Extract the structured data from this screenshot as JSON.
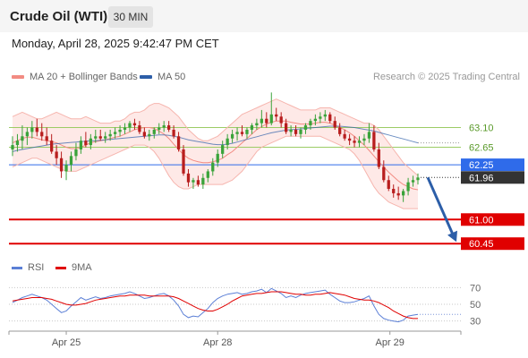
{
  "header": {
    "title": "Crude Oil (WTI)",
    "timeframe": "30 MIN"
  },
  "timestamp": "Monday, April 28, 2025 9:42:47 PM CET",
  "legend": {
    "bollinger": {
      "label": "MA 20 + Bollinger Bands",
      "color": "#f28b82"
    },
    "ma50": {
      "label": "MA 50",
      "color": "#2c5ea8"
    }
  },
  "credit": "Research © 2025 Trading Central",
  "rsi_legend": {
    "rsi": {
      "label": "RSI",
      "color": "#5b7fd6"
    },
    "ma9": {
      "label": "9MA",
      "color": "#e00000"
    }
  },
  "colors": {
    "up": "#3aa33a",
    "down": "#b81e1e",
    "resistance": "#9ccc65",
    "support": "#e00000",
    "pivot": "#2f6bea",
    "arrow": "#2c5ea8"
  },
  "chart_data": {
    "type": "candlestick",
    "price_axis": {
      "min": 60.25,
      "max": 64.05
    },
    "x_ticks": [
      "Apr 25",
      "Apr 28",
      "Apr 29"
    ],
    "levels": [
      {
        "label": "63.10",
        "value": 63.1,
        "kind": "resistance"
      },
      {
        "label": "62.65",
        "value": 62.65,
        "kind": "resistance"
      },
      {
        "label": "62.25",
        "value": 62.25,
        "kind": "pivot"
      },
      {
        "label": "61.00",
        "value": 61.0,
        "kind": "support"
      },
      {
        "label": "60.45",
        "value": 60.45,
        "kind": "support"
      }
    ],
    "last_price": {
      "label": "61.96",
      "value": 61.96
    },
    "ohlc": [
      [
        62.6,
        62.9,
        62.45,
        62.7
      ],
      [
        62.7,
        62.95,
        62.55,
        62.8
      ],
      [
        62.8,
        63.15,
        62.6,
        62.9
      ],
      [
        62.9,
        63.1,
        62.7,
        63.0
      ],
      [
        63.0,
        63.25,
        62.85,
        63.1
      ],
      [
        63.1,
        63.3,
        62.9,
        63.0
      ],
      [
        63.0,
        63.2,
        62.8,
        62.9
      ],
      [
        62.9,
        63.1,
        62.7,
        62.8
      ],
      [
        62.8,
        62.95,
        62.5,
        62.55
      ],
      [
        62.55,
        62.7,
        62.25,
        62.4
      ],
      [
        62.4,
        62.55,
        61.95,
        62.1
      ],
      [
        62.1,
        62.35,
        61.9,
        62.25
      ],
      [
        62.25,
        62.55,
        62.1,
        62.45
      ],
      [
        62.45,
        62.75,
        62.35,
        62.6
      ],
      [
        62.6,
        62.9,
        62.5,
        62.8
      ],
      [
        62.8,
        63.0,
        62.65,
        62.7
      ],
      [
        62.7,
        62.95,
        62.6,
        62.85
      ],
      [
        62.85,
        63.05,
        62.75,
        62.9
      ],
      [
        62.9,
        63.05,
        62.8,
        62.85
      ],
      [
        62.85,
        63.0,
        62.75,
        62.9
      ],
      [
        62.9,
        63.05,
        62.8,
        62.95
      ],
      [
        62.95,
        63.1,
        62.85,
        63.0
      ],
      [
        63.0,
        63.15,
        62.9,
        63.05
      ],
      [
        63.05,
        63.2,
        62.95,
        63.1
      ],
      [
        63.1,
        63.25,
        63.0,
        63.2
      ],
      [
        63.2,
        63.3,
        63.05,
        63.15
      ],
      [
        63.15,
        63.25,
        62.95,
        63.0
      ],
      [
        63.0,
        63.1,
        62.85,
        62.9
      ],
      [
        62.9,
        63.05,
        62.8,
        62.95
      ],
      [
        62.95,
        63.1,
        62.85,
        63.05
      ],
      [
        63.05,
        63.2,
        62.95,
        63.1
      ],
      [
        63.1,
        63.25,
        63.0,
        63.15
      ],
      [
        63.15,
        63.25,
        63.0,
        63.05
      ],
      [
        63.05,
        63.15,
        62.85,
        62.9
      ],
      [
        62.9,
        63.0,
        62.55,
        62.6
      ],
      [
        62.6,
        62.7,
        62.0,
        62.05
      ],
      [
        62.05,
        62.15,
        61.75,
        61.85
      ],
      [
        61.85,
        61.95,
        61.7,
        61.9
      ],
      [
        61.9,
        62.0,
        61.75,
        61.8
      ],
      [
        61.8,
        62.05,
        61.7,
        61.95
      ],
      [
        61.95,
        62.15,
        61.85,
        62.1
      ],
      [
        62.1,
        62.4,
        62.0,
        62.3
      ],
      [
        62.3,
        62.6,
        62.2,
        62.5
      ],
      [
        62.5,
        62.8,
        62.4,
        62.7
      ],
      [
        62.7,
        62.95,
        62.6,
        62.85
      ],
      [
        62.85,
        63.05,
        62.75,
        62.95
      ],
      [
        62.95,
        63.1,
        62.8,
        63.0
      ],
      [
        63.0,
        63.15,
        62.9,
        62.95
      ],
      [
        62.95,
        63.1,
        62.85,
        63.05
      ],
      [
        63.05,
        63.2,
        62.95,
        63.15
      ],
      [
        63.15,
        63.3,
        63.05,
        63.2
      ],
      [
        63.2,
        63.5,
        63.1,
        63.3
      ],
      [
        63.3,
        63.45,
        63.1,
        63.2
      ],
      [
        63.2,
        63.9,
        63.15,
        63.4
      ],
      [
        63.4,
        63.55,
        63.25,
        63.35
      ],
      [
        63.35,
        63.45,
        63.1,
        63.2
      ],
      [
        63.2,
        63.3,
        62.95,
        63.0
      ],
      [
        63.0,
        63.15,
        62.9,
        63.05
      ],
      [
        63.05,
        63.15,
        62.9,
        62.95
      ],
      [
        62.95,
        63.1,
        62.85,
        63.05
      ],
      [
        63.05,
        63.2,
        62.95,
        63.15
      ],
      [
        63.15,
        63.3,
        63.05,
        63.25
      ],
      [
        63.25,
        63.4,
        63.15,
        63.3
      ],
      [
        63.3,
        63.45,
        63.2,
        63.35
      ],
      [
        63.35,
        63.5,
        63.25,
        63.4
      ],
      [
        63.4,
        63.45,
        63.2,
        63.25
      ],
      [
        63.25,
        63.35,
        63.05,
        63.1
      ],
      [
        63.1,
        63.2,
        62.9,
        62.95
      ],
      [
        62.95,
        63.05,
        62.8,
        62.85
      ],
      [
        62.85,
        62.95,
        62.7,
        62.8
      ],
      [
        62.8,
        62.9,
        62.65,
        62.75
      ],
      [
        62.75,
        62.9,
        62.65,
        62.8
      ],
      [
        62.8,
        62.95,
        62.7,
        62.85
      ],
      [
        62.85,
        63.2,
        62.75,
        63.0
      ],
      [
        63.0,
        63.15,
        62.55,
        62.6
      ],
      [
        62.6,
        62.75,
        62.15,
        62.2
      ],
      [
        62.2,
        62.35,
        61.85,
        61.9
      ],
      [
        61.9,
        62.0,
        61.65,
        61.7
      ],
      [
        61.7,
        61.8,
        61.5,
        61.6
      ],
      [
        61.6,
        61.75,
        61.45,
        61.55
      ],
      [
        61.55,
        61.7,
        61.4,
        61.65
      ],
      [
        61.65,
        61.95,
        61.55,
        61.85
      ],
      [
        61.85,
        62.0,
        61.75,
        61.9
      ],
      [
        61.9,
        62.05,
        61.8,
        61.96
      ]
    ],
    "ma20_upper": [
      63.35,
      63.4,
      63.45,
      63.4,
      63.35,
      63.3,
      63.3,
      63.35,
      63.4,
      63.45,
      63.4,
      63.35,
      63.3,
      63.3,
      63.3,
      63.35,
      63.3,
      63.25,
      63.2,
      63.2,
      63.2,
      63.25,
      63.25,
      63.3,
      63.4,
      63.45,
      63.45,
      63.5,
      63.6,
      63.65,
      63.65,
      63.6,
      63.55,
      63.45,
      63.35,
      63.2,
      63.05,
      62.95,
      62.85,
      62.8,
      62.8,
      62.85,
      62.9,
      63.0,
      63.1,
      63.2,
      63.3,
      63.4,
      63.45,
      63.5,
      63.55,
      63.6,
      63.65,
      63.7,
      63.75,
      63.7,
      63.65,
      63.6,
      63.55,
      63.5,
      63.5,
      63.5,
      63.5,
      63.55,
      63.55,
      63.55,
      63.5,
      63.45,
      63.4,
      63.35,
      63.3,
      63.25,
      63.2,
      63.2,
      63.15,
      63.05,
      62.9,
      62.75,
      62.6,
      62.45,
      62.3,
      62.2,
      62.1,
      62.0
    ],
    "ma20_lower": [
      62.2,
      62.25,
      62.3,
      62.35,
      62.4,
      62.4,
      62.35,
      62.3,
      62.25,
      62.2,
      62.15,
      62.1,
      62.1,
      62.1,
      62.15,
      62.2,
      62.25,
      62.3,
      62.35,
      62.4,
      62.45,
      62.5,
      62.55,
      62.6,
      62.65,
      62.7,
      62.7,
      62.7,
      62.65,
      62.55,
      62.4,
      62.2,
      62.0,
      61.85,
      61.75,
      61.7,
      61.7,
      61.75,
      61.8,
      61.8,
      61.8,
      61.8,
      61.8,
      61.8,
      61.85,
      61.9,
      62.0,
      62.1,
      62.25,
      62.4,
      62.55,
      62.65,
      62.7,
      62.75,
      62.8,
      62.85,
      62.9,
      62.9,
      62.9,
      62.9,
      62.9,
      62.9,
      62.9,
      62.9,
      62.85,
      62.8,
      62.75,
      62.7,
      62.65,
      62.6,
      62.5,
      62.35,
      62.15,
      61.95,
      61.75,
      61.6,
      61.5,
      61.4,
      61.35,
      61.3,
      61.25,
      61.25,
      61.25,
      61.25
    ],
    "ma20": [
      62.75,
      62.8,
      62.85,
      62.88,
      62.88,
      62.85,
      62.82,
      62.8,
      62.78,
      62.75,
      62.7,
      62.65,
      62.62,
      62.62,
      62.65,
      62.7,
      62.75,
      62.78,
      62.8,
      62.82,
      62.85,
      62.88,
      62.9,
      62.95,
      63.0,
      63.05,
      63.08,
      63.1,
      63.1,
      63.08,
      63.02,
      62.95,
      62.85,
      62.72,
      62.6,
      62.48,
      62.4,
      62.35,
      62.32,
      62.3,
      62.3,
      62.32,
      62.35,
      62.4,
      62.48,
      62.55,
      62.65,
      62.75,
      62.85,
      62.95,
      63.05,
      63.12,
      63.18,
      63.22,
      63.25,
      63.25,
      63.25,
      63.22,
      63.2,
      63.18,
      63.18,
      63.18,
      63.2,
      63.22,
      63.22,
      63.2,
      63.15,
      63.1,
      63.05,
      62.98,
      62.9,
      62.8,
      62.7,
      62.58,
      62.45,
      62.32,
      62.2,
      62.08,
      61.98,
      61.88,
      61.8,
      61.75,
      61.7,
      61.68
    ],
    "ma50": [
      62.55,
      62.58,
      62.6,
      62.62,
      62.64,
      62.66,
      62.68,
      62.7,
      62.72,
      62.73,
      62.74,
      62.75,
      62.76,
      62.77,
      62.78,
      62.79,
      62.8,
      62.8,
      62.81,
      62.82,
      62.83,
      62.84,
      62.85,
      62.86,
      62.87,
      62.88,
      62.89,
      62.9,
      62.91,
      62.92,
      62.93,
      62.93,
      62.92,
      62.9,
      62.88,
      62.85,
      62.82,
      62.8,
      62.78,
      62.76,
      62.74,
      62.72,
      62.71,
      62.71,
      62.72,
      62.74,
      62.77,
      62.8,
      62.83,
      62.86,
      62.89,
      62.92,
      62.95,
      62.98,
      63.0,
      63.02,
      63.04,
      63.05,
      63.06,
      63.07,
      63.08,
      63.09,
      63.1,
      63.11,
      63.12,
      63.13,
      63.13,
      63.13,
      63.12,
      63.11,
      63.1,
      63.08,
      63.06,
      63.04,
      63.02,
      62.99,
      62.96,
      62.93,
      62.9,
      62.87,
      62.84,
      62.81,
      62.78,
      62.75
    ]
  },
  "rsi_data": {
    "axis": {
      "min": 20,
      "max": 80
    },
    "ticks": [
      70,
      50,
      30
    ],
    "rsi": [
      52,
      55,
      58,
      60,
      62,
      60,
      58,
      55,
      50,
      45,
      40,
      42,
      48,
      53,
      58,
      55,
      57,
      59,
      57,
      58,
      60,
      61,
      62,
      63,
      65,
      63,
      60,
      57,
      58,
      60,
      62,
      63,
      60,
      55,
      48,
      38,
      34,
      36,
      35,
      40,
      45,
      52,
      57,
      60,
      62,
      63,
      64,
      62,
      63,
      65,
      66,
      68,
      64,
      69,
      66,
      63,
      58,
      60,
      58,
      61,
      63,
      64,
      65,
      66,
      67,
      62,
      58,
      54,
      52,
      52,
      53,
      55,
      57,
      60,
      48,
      38,
      33,
      31,
      30,
      29,
      31,
      36,
      37,
      38
    ],
    "ma9": [
      54,
      55,
      56,
      57,
      58,
      58,
      58,
      57,
      56,
      54,
      52,
      50,
      49,
      49,
      50,
      51,
      53,
      55,
      56,
      57,
      58,
      59,
      60,
      60,
      61,
      61,
      61,
      61,
      60,
      60,
      60,
      60,
      60,
      59,
      57,
      54,
      51,
      48,
      45,
      43,
      42,
      42,
      44,
      47,
      50,
      54,
      57,
      60,
      61,
      62,
      63,
      63,
      64,
      65,
      65,
      65,
      64,
      63,
      62,
      62,
      61,
      61,
      62,
      62,
      63,
      64,
      63,
      62,
      61,
      59,
      57,
      56,
      55,
      55,
      54,
      52,
      49,
      46,
      42,
      39,
      36,
      34,
      33,
      33
    ]
  }
}
